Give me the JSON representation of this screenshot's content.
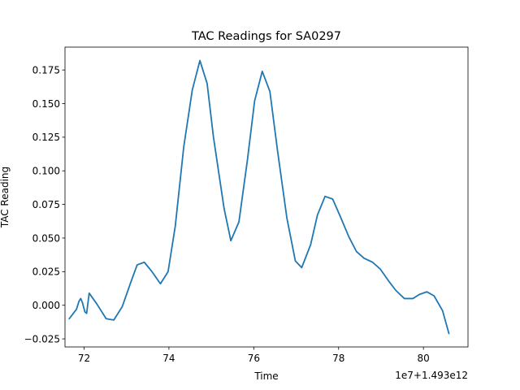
{
  "chart_data": {
    "type": "line",
    "title": "TAC Readings for SA0297",
    "xlabel": "Time",
    "ylabel": "TAC Reading",
    "x_offset_label": "1e7+1.493e12",
    "xlim": [
      71.55,
      81.05
    ],
    "ylim": [
      -0.031,
      0.192
    ],
    "xticks": [
      72,
      74,
      76,
      78,
      80
    ],
    "xtick_labels": [
      "72",
      "74",
      "76",
      "78",
      "80"
    ],
    "yticks": [
      -0.025,
      0.0,
      0.025,
      0.05,
      0.075,
      0.1,
      0.125,
      0.15,
      0.175
    ],
    "ytick_labels": [
      "−0.025",
      "0.000",
      "0.025",
      "0.050",
      "0.075",
      "0.100",
      "0.125",
      "0.150",
      "0.175"
    ],
    "grid": false,
    "color": "#1f77b4",
    "series": [
      {
        "x": [
          71.65,
          71.82,
          71.88,
          71.92,
          71.96,
          72.02,
          72.06,
          72.12,
          72.3,
          72.52,
          72.7,
          72.9,
          73.1,
          73.25,
          73.42,
          73.6,
          73.8,
          73.98,
          74.15,
          74.35,
          74.55,
          74.73,
          74.9,
          75.05,
          75.3,
          75.46,
          75.65,
          75.85,
          76.02,
          76.2,
          76.38,
          76.56,
          76.78,
          76.98,
          77.13,
          77.34,
          77.5,
          77.68,
          77.86,
          78.04,
          78.24,
          78.42,
          78.6,
          78.8,
          78.98,
          79.18,
          79.35,
          79.55,
          79.75,
          79.9,
          80.08,
          80.25,
          80.45,
          80.6
        ],
        "y": [
          -0.01,
          -0.003,
          0.003,
          0.005,
          0.002,
          -0.005,
          -0.006,
          0.009,
          0.001,
          -0.01,
          -0.011,
          -0.001,
          0.017,
          0.03,
          0.032,
          0.025,
          0.016,
          0.025,
          0.059,
          0.118,
          0.16,
          0.182,
          0.165,
          0.125,
          0.072,
          0.048,
          0.062,
          0.108,
          0.152,
          0.174,
          0.159,
          0.115,
          0.065,
          0.033,
          0.028,
          0.045,
          0.067,
          0.081,
          0.079,
          0.066,
          0.051,
          0.04,
          0.035,
          0.032,
          0.027,
          0.018,
          0.011,
          0.005,
          0.005,
          0.008,
          0.01,
          0.007,
          -0.004,
          -0.021
        ]
      }
    ]
  }
}
